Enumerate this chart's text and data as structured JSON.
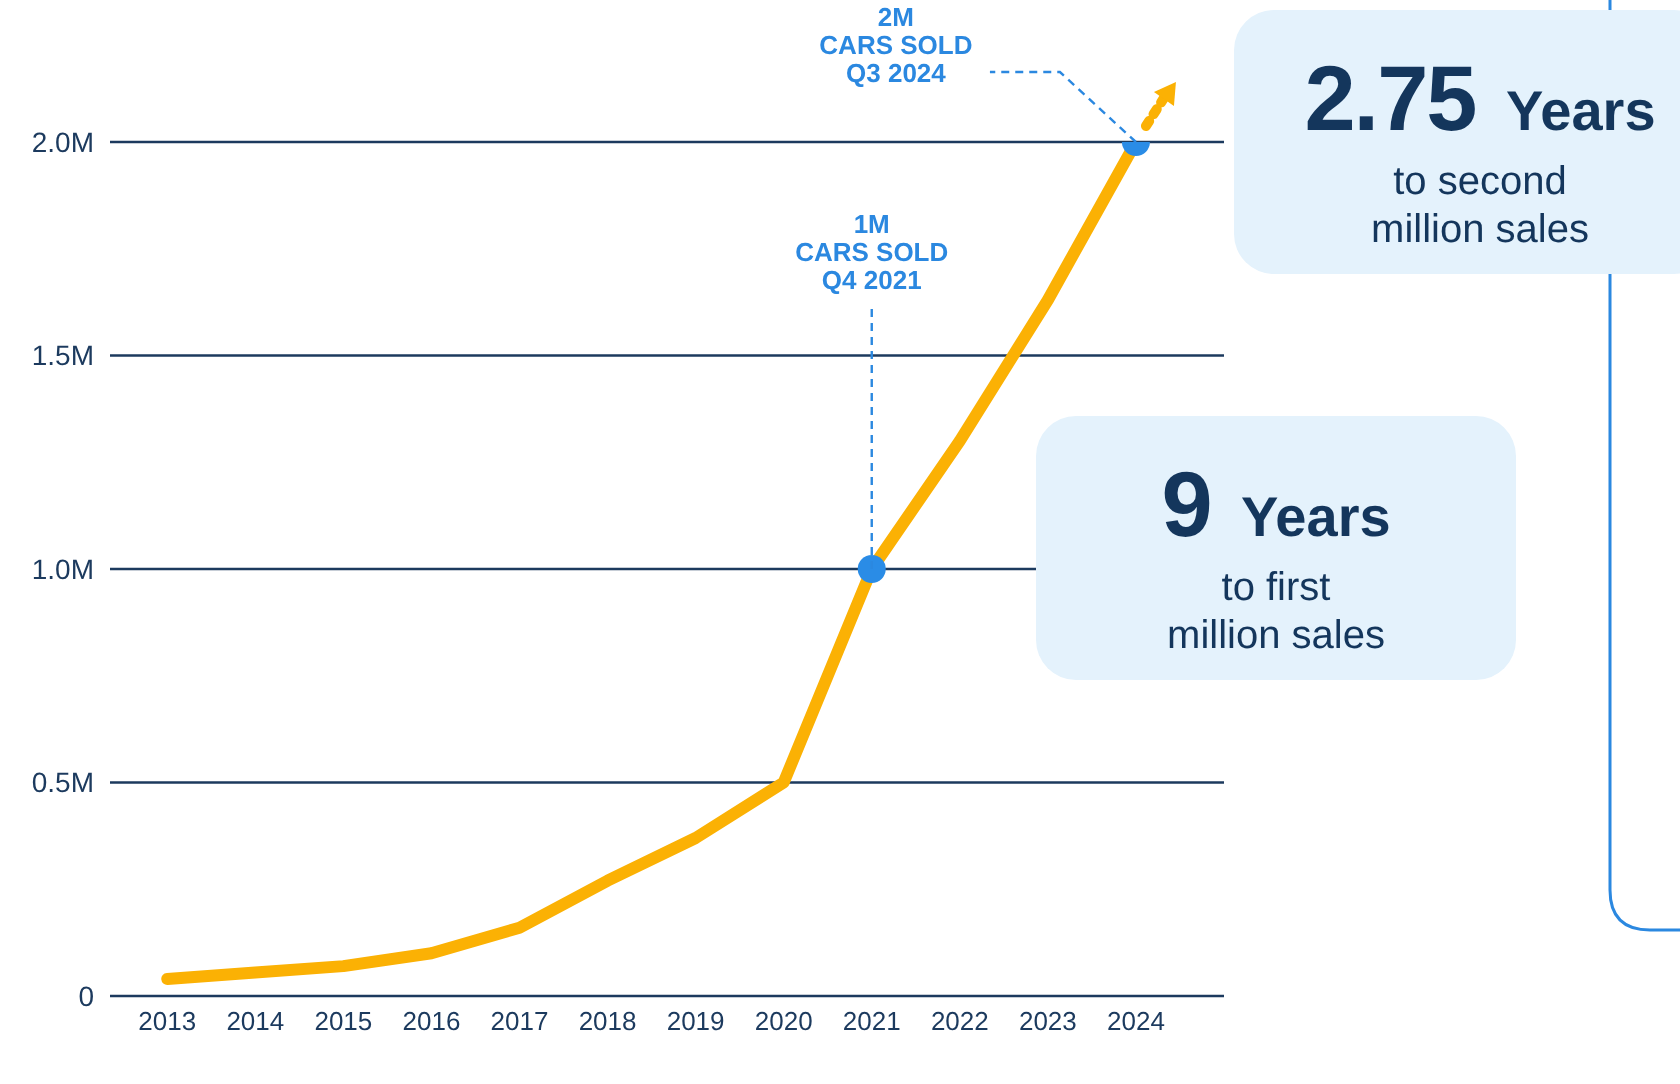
{
  "chart_data": {
    "type": "line",
    "x": [
      2013,
      2014,
      2015,
      2016,
      2017,
      2018,
      2019,
      2020,
      2021,
      2022,
      2023,
      2024
    ],
    "series": [
      {
        "color": "#fbb104",
        "values": [
          0.04,
          0.055,
          0.07,
          0.1,
          0.16,
          0.27,
          0.37,
          0.5,
          1.0,
          1.3,
          1.63,
          2.0
        ]
      },
      {
        "type": "scatter",
        "color": "#2a8ce6",
        "x": [
          2021,
          2024
        ],
        "values": [
          1.0,
          2.0
        ]
      }
    ],
    "xlim": [
      2012.35,
      2025
    ],
    "xticks": [
      2013,
      2014,
      2015,
      2016,
      2017,
      2018,
      2019,
      2020,
      2021,
      2022,
      2023,
      2024
    ],
    "ylim": [
      0,
      2.0
    ],
    "yticks": [
      {
        "value": 0,
        "label": "0"
      },
      {
        "value": 0.5,
        "label": "0.5M"
      },
      {
        "value": 1.0,
        "label": "1.0M"
      },
      {
        "value": 1.5,
        "label": "1.5M"
      },
      {
        "value": 2.0,
        "label": "2.0M"
      }
    ],
    "grid": "y",
    "annotations": [
      {
        "text": "2M\nCARS SOLD\nQ3 2024",
        "x": 2024,
        "y": 2.0
      },
      {
        "text": "1M\nCARS SOLD\nQ4 2021",
        "x": 2021,
        "y": 1.0
      },
      "2.75 Years\nto second\nmillion sales",
      "9 Years\nto first\nmillion sales"
    ]
  }
}
